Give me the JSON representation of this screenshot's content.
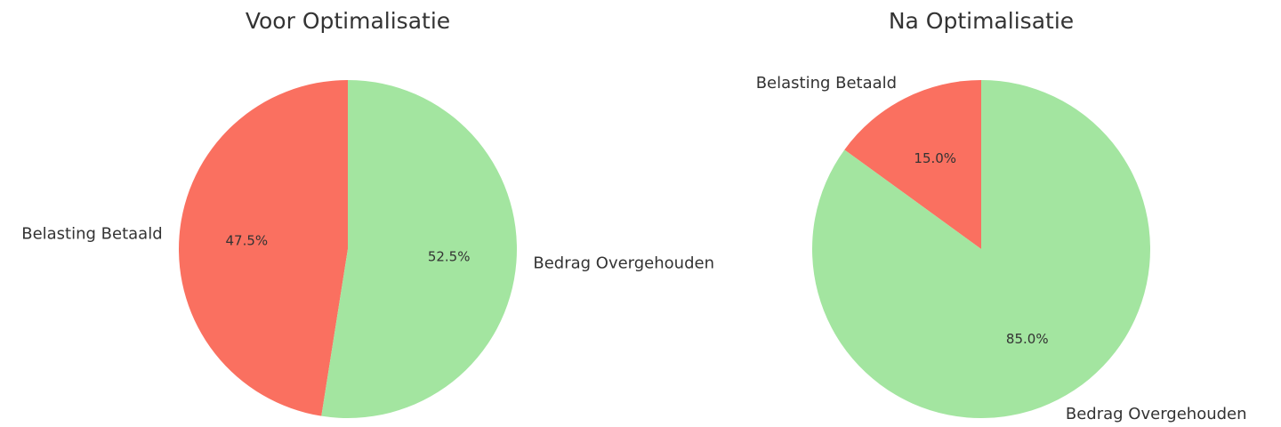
{
  "chart_data": [
    {
      "type": "pie",
      "title": "Voor Optimalisatie",
      "categories": [
        "Belasting Betaald",
        "Bedrag Overgehouden"
      ],
      "values": [
        47.5,
        52.5
      ],
      "value_labels": [
        "47.5%",
        "52.5%"
      ],
      "colors": [
        "#fa7060",
        "#a3e5a0"
      ]
    },
    {
      "type": "pie",
      "title": "Na Optimalisatie",
      "categories": [
        "Belasting Betaald",
        "Bedrag Overgehouden"
      ],
      "values": [
        15.0,
        85.0
      ],
      "value_labels": [
        "15.0%",
        "85.0%"
      ],
      "colors": [
        "#fa7060",
        "#a3e5a0"
      ]
    }
  ]
}
